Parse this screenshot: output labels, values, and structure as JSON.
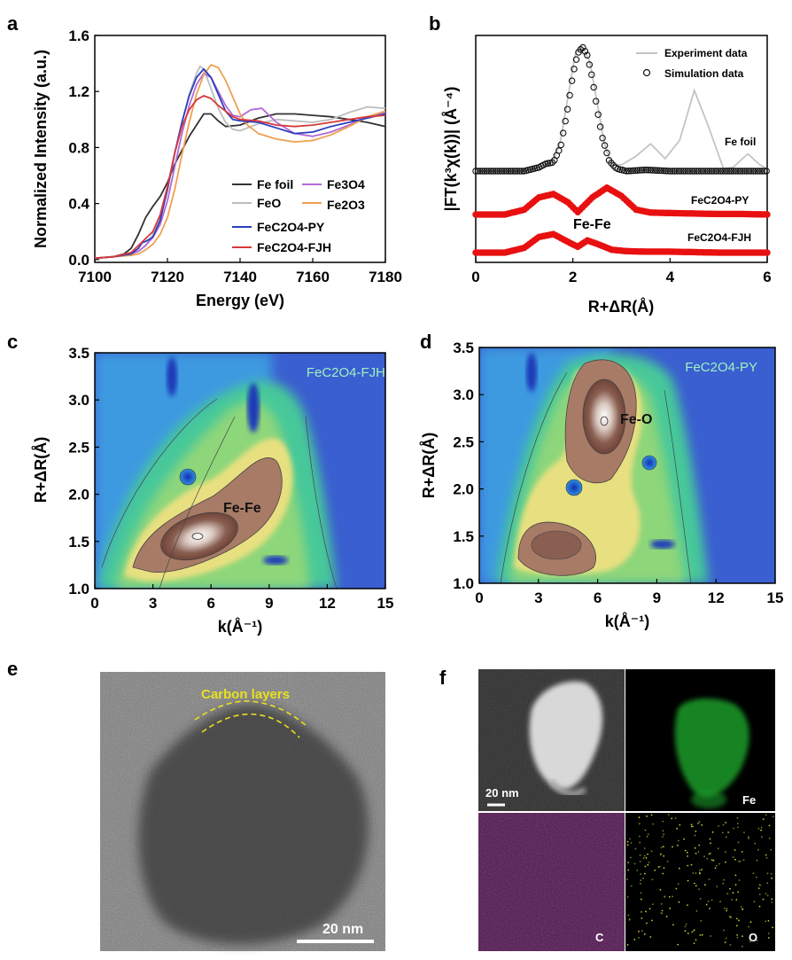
{
  "panel_labels": {
    "a": "a",
    "b": "b",
    "c": "c",
    "d": "d",
    "e": "e",
    "f": "f"
  },
  "colors": {
    "fe_foil": "#333333",
    "feo": "#bdbdbd",
    "fe3o4": "#b36ad6",
    "fe2o3": "#f0a050",
    "py": "#2b3fbf",
    "fjh": "#d63a3a",
    "experiment": "#c4c4c4",
    "simulation_marker": "#111111",
    "fit_marker": "#e81010",
    "carbon_annotation": "#e8e020"
  },
  "chart_data": [
    {
      "id": "a",
      "type": "line",
      "xlabel": "Energy (eV)",
      "ylabel": "Normalized Intensity (a.u.)",
      "xlim": [
        7100,
        7180
      ],
      "ylim": [
        -0.02,
        1.6
      ],
      "xticks": [
        "7100",
        "7120",
        "7140",
        "7160",
        "7180"
      ],
      "yticks": [
        "0.0",
        "0.4",
        "0.8",
        "1.2",
        "1.6"
      ],
      "legend_position": "bottom-right",
      "series": [
        {
          "key": "fe_foil",
          "name": "Fe foil",
          "x": [
            7100,
            7105,
            7108,
            7110,
            7112,
            7114,
            7116,
            7118,
            7120,
            7122,
            7124,
            7126,
            7128,
            7130,
            7132,
            7134,
            7136,
            7140,
            7145,
            7150,
            7155,
            7160,
            7165,
            7170,
            7175,
            7180
          ],
          "y": [
            0.01,
            0.02,
            0.04,
            0.08,
            0.18,
            0.3,
            0.38,
            0.45,
            0.55,
            0.68,
            0.78,
            0.88,
            0.96,
            1.04,
            1.04,
            0.99,
            0.95,
            0.96,
            1.01,
            1.04,
            1.04,
            1.03,
            1.02,
            1.0,
            0.98,
            0.95
          ]
        },
        {
          "key": "feo",
          "name": "FeO",
          "x": [
            7100,
            7105,
            7110,
            7112,
            7114,
            7116,
            7118,
            7120,
            7122,
            7124,
            7126,
            7128,
            7129,
            7130,
            7132,
            7134,
            7136,
            7138,
            7140,
            7145,
            7150,
            7155,
            7160,
            7165,
            7170,
            7175,
            7180
          ],
          "y": [
            0.01,
            0.02,
            0.04,
            0.06,
            0.1,
            0.18,
            0.3,
            0.5,
            0.75,
            0.98,
            1.18,
            1.33,
            1.38,
            1.36,
            1.22,
            1.08,
            0.98,
            0.93,
            0.92,
            0.97,
            1.0,
            0.99,
            0.98,
            1.0,
            1.05,
            1.09,
            1.08
          ]
        },
        {
          "key": "fe3o4",
          "name": "Fe3O4",
          "x": [
            7100,
            7105,
            7110,
            7112,
            7114,
            7116,
            7118,
            7120,
            7122,
            7124,
            7126,
            7128,
            7130,
            7132,
            7134,
            7136,
            7138,
            7140,
            7143,
            7146,
            7150,
            7155,
            7160,
            7165,
            7170,
            7175,
            7180
          ],
          "y": [
            0.01,
            0.02,
            0.04,
            0.06,
            0.1,
            0.16,
            0.25,
            0.42,
            0.66,
            0.9,
            1.1,
            1.25,
            1.33,
            1.3,
            1.2,
            1.1,
            1.03,
            1.02,
            1.07,
            1.08,
            0.98,
            0.9,
            0.88,
            0.91,
            0.96,
            1.02,
            1.05
          ]
        },
        {
          "key": "fe2o3",
          "name": "Fe2O3",
          "x": [
            7100,
            7105,
            7110,
            7112,
            7114,
            7116,
            7118,
            7120,
            7122,
            7124,
            7126,
            7128,
            7130,
            7132,
            7134,
            7136,
            7138,
            7140,
            7142,
            7145,
            7150,
            7155,
            7160,
            7165,
            7170,
            7175,
            7180
          ],
          "y": [
            0.01,
            0.02,
            0.03,
            0.04,
            0.07,
            0.11,
            0.18,
            0.3,
            0.5,
            0.75,
            0.98,
            1.18,
            1.32,
            1.39,
            1.37,
            1.28,
            1.16,
            1.04,
            0.96,
            0.9,
            0.86,
            0.84,
            0.85,
            0.89,
            0.95,
            1.02,
            1.06
          ]
        },
        {
          "key": "py",
          "name": "FeC2O4-PY",
          "x": [
            7100,
            7105,
            7110,
            7112,
            7113,
            7114,
            7116,
            7118,
            7120,
            7122,
            7124,
            7126,
            7128,
            7130,
            7132,
            7134,
            7136,
            7138,
            7140,
            7145,
            7150,
            7155,
            7160,
            7165,
            7170,
            7175,
            7180
          ],
          "y": [
            0.01,
            0.02,
            0.04,
            0.08,
            0.12,
            0.13,
            0.16,
            0.28,
            0.5,
            0.76,
            0.98,
            1.17,
            1.3,
            1.36,
            1.3,
            1.18,
            1.06,
            1.0,
            0.99,
            0.98,
            0.94,
            0.9,
            0.91,
            0.95,
            0.98,
            1.01,
            1.04
          ]
        },
        {
          "key": "fjh",
          "name": "FeC2O4-FJH",
          "x": [
            7100,
            7105,
            7110,
            7112,
            7114,
            7116,
            7118,
            7120,
            7122,
            7124,
            7126,
            7128,
            7130,
            7132,
            7134,
            7136,
            7138,
            7140,
            7145,
            7150,
            7155,
            7160,
            7165,
            7170,
            7175,
            7180
          ],
          "y": [
            0.01,
            0.02,
            0.05,
            0.1,
            0.15,
            0.2,
            0.32,
            0.52,
            0.76,
            0.95,
            1.07,
            1.14,
            1.17,
            1.15,
            1.1,
            1.06,
            1.02,
            1.0,
            0.99,
            0.96,
            0.95,
            0.96,
            0.98,
            1.0,
            1.02,
            1.03
          ]
        }
      ]
    },
    {
      "id": "b",
      "type": "line",
      "xlabel": "R+ΔR(Å)",
      "ylabel": "|FT(k³χ(k))| (Å⁻⁴)",
      "xlim": [
        0,
        6
      ],
      "ylim": [
        0,
        1
      ],
      "xticks": [
        "0",
        "2",
        "4",
        "6"
      ],
      "legend_position": "top-right",
      "legend": [
        "Experiment data",
        "Simulation data"
      ],
      "annotations": [
        "Fe foil",
        "FeC2O4-PY",
        "FeC2O4-FJH",
        "Fe-Fe"
      ],
      "fe_foil_experiment": {
        "x": [
          0.0,
          1.0,
          1.2,
          1.45,
          1.6,
          1.75,
          1.9,
          2.05,
          2.2,
          2.35,
          2.5,
          2.65,
          2.8,
          3.0,
          3.3,
          3.6,
          3.9,
          4.2,
          4.5,
          4.8,
          5.1,
          5.3,
          5.6,
          5.85,
          6.0
        ],
        "y": [
          0.0,
          0.0,
          0.02,
          0.05,
          0.08,
          0.25,
          0.6,
          0.95,
          1.0,
          0.88,
          0.55,
          0.22,
          0.05,
          0.05,
          0.12,
          0.22,
          0.1,
          0.25,
          0.65,
          0.35,
          0.02,
          0.03,
          0.14,
          0.05,
          0.02
        ]
      },
      "fe_foil_simulation": {
        "x": [
          0.0,
          1.0,
          1.3,
          1.45,
          1.6,
          1.75,
          1.9,
          2.0,
          2.1,
          2.2,
          2.3,
          2.4,
          2.5,
          2.6,
          2.75,
          2.9,
          3.1,
          3.5,
          4.0,
          4.5,
          5.0,
          6.0
        ],
        "y": [
          0.0,
          0.0,
          0.03,
          0.06,
          0.07,
          0.2,
          0.52,
          0.78,
          0.95,
          1.0,
          0.93,
          0.75,
          0.5,
          0.28,
          0.08,
          0.02,
          0.0,
          0.01,
          0.0,
          0.0,
          0.0,
          0.0
        ]
      },
      "py_fit": {
        "x": [
          0.0,
          0.6,
          1.0,
          1.3,
          1.6,
          1.9,
          2.1,
          2.4,
          2.7,
          3.0,
          3.3,
          3.6,
          4.0,
          4.5,
          5.0,
          5.5,
          6.0
        ],
        "y": [
          0.0,
          0.0,
          0.1,
          0.35,
          0.42,
          0.25,
          0.05,
          0.35,
          0.55,
          0.38,
          0.1,
          0.04,
          0.03,
          0.02,
          0.01,
          0.01,
          0.0
        ]
      },
      "fjh_fit": {
        "x": [
          0.0,
          0.6,
          1.0,
          1.3,
          1.6,
          1.9,
          2.1,
          2.3,
          2.5,
          2.8,
          3.1,
          3.5,
          4.0,
          4.5,
          5.0,
          6.0
        ],
        "y": [
          0.0,
          0.0,
          0.1,
          0.32,
          0.38,
          0.22,
          0.12,
          0.25,
          0.18,
          0.06,
          0.03,
          0.02,
          0.02,
          0.01,
          0.0,
          0.0
        ]
      }
    },
    {
      "id": "c",
      "type": "heatmap",
      "xlabel": "k(Å⁻¹)",
      "ylabel": "R+ΔR(Å)",
      "xlim": [
        0,
        15
      ],
      "ylim": [
        1.0,
        3.5
      ],
      "xticks": [
        "0",
        "3",
        "6",
        "9",
        "12",
        "15"
      ],
      "yticks": [
        "1.0",
        "1.5",
        "2.0",
        "2.5",
        "3.0",
        "3.5"
      ],
      "label": "FeC2O4-FJH",
      "peak_label": "Fe-Fe"
    },
    {
      "id": "d",
      "type": "heatmap",
      "xlabel": "k(Å⁻¹)",
      "ylabel": "R+ΔR(Å)",
      "xlim": [
        0,
        15
      ],
      "ylim": [
        1.0,
        3.5
      ],
      "xticks": [
        "0",
        "3",
        "6",
        "9",
        "12",
        "15"
      ],
      "yticks": [
        "1.0",
        "1.5",
        "2.0",
        "2.5",
        "3.0",
        "3.5"
      ],
      "label": "FeC2O4-PY",
      "peak_label": "Fe-O"
    }
  ],
  "micrograph_e": {
    "annotation": "Carbon layers",
    "scale_bar": "20 nm"
  },
  "eds_f": {
    "scale_bar": "20 nm",
    "labels": [
      "Fe",
      "C",
      "O"
    ]
  }
}
